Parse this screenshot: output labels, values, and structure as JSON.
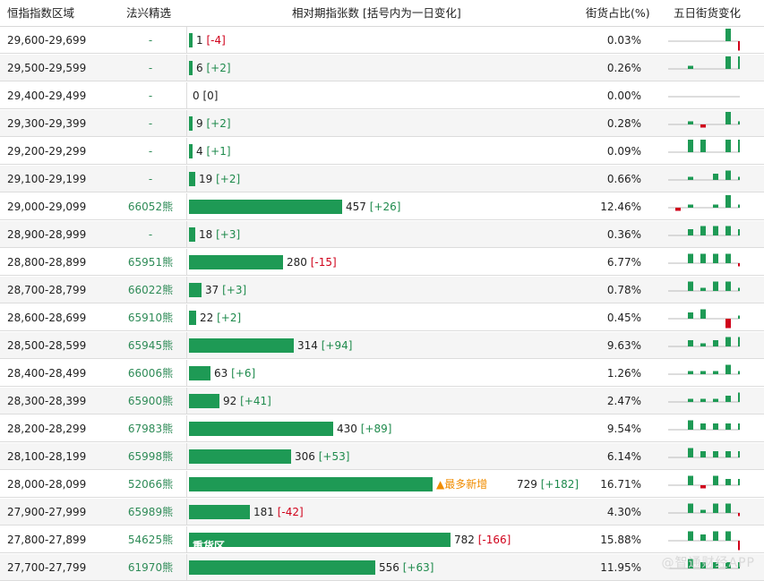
{
  "header": {
    "range": "恒指指数区域",
    "fx": "法兴精选",
    "chart": "相对期指张数 [括号内为一日变化]",
    "pct": "街货占比(%)",
    "five": "五日街货变化"
  },
  "colors": {
    "bar": "#1e9a55",
    "pos": "#1e8a4c",
    "neg": "#d0021b",
    "highlight": "#f08c00"
  },
  "annotations": {
    "most_new": "▲最多新增",
    "heavy": "重货区"
  },
  "watermark": "@智通财经APP",
  "chart_data": {
    "type": "bar",
    "max": 782,
    "rows": [
      {
        "range": "29,600-29,699",
        "fx": "-",
        "value": 1,
        "change": "[-4]",
        "dir": "neg",
        "pct": "0.03%",
        "spark": [
          0,
          0,
          0,
          0,
          4,
          -3
        ]
      },
      {
        "range": "29,500-29,599",
        "fx": "-",
        "value": 6,
        "change": "[+2]",
        "dir": "pos",
        "pct": "0.26%",
        "spark": [
          0,
          1,
          0,
          0,
          4,
          4
        ]
      },
      {
        "range": "29,400-29,499",
        "fx": "-",
        "value": 0,
        "change": "[0]",
        "dir": "none",
        "pct": "0.00%",
        "spark": [
          0,
          0,
          0,
          0,
          0,
          0
        ]
      },
      {
        "range": "29,300-29,399",
        "fx": "-",
        "value": 9,
        "change": "[+2]",
        "dir": "pos",
        "pct": "0.28%",
        "spark": [
          0,
          1,
          -1,
          0,
          4,
          1
        ]
      },
      {
        "range": "29,200-29,299",
        "fx": "-",
        "value": 4,
        "change": "[+1]",
        "dir": "pos",
        "pct": "0.09%",
        "spark": [
          0,
          4,
          4,
          0,
          4,
          4
        ]
      },
      {
        "range": "29,100-29,199",
        "fx": "-",
        "value": 19,
        "change": "[+2]",
        "dir": "pos",
        "pct": "0.66%",
        "spark": [
          0,
          1,
          0,
          2,
          3,
          1
        ]
      },
      {
        "range": "29,000-29,099",
        "fx": "66052熊",
        "value": 457,
        "change": "[+26]",
        "dir": "pos",
        "pct": "12.46%",
        "spark": [
          -1,
          1,
          0,
          1,
          4,
          1
        ]
      },
      {
        "range": "28,900-28,999",
        "fx": "-",
        "value": 18,
        "change": "[+3]",
        "dir": "pos",
        "pct": "0.36%",
        "spark": [
          0,
          2,
          3,
          3,
          3,
          2
        ]
      },
      {
        "range": "28,800-28,899",
        "fx": "65951熊",
        "value": 280,
        "change": "[-15]",
        "dir": "neg",
        "pct": "6.77%",
        "spark": [
          0,
          3,
          3,
          3,
          3,
          -1
        ]
      },
      {
        "range": "28,700-28,799",
        "fx": "66022熊",
        "value": 37,
        "change": "[+3]",
        "dir": "pos",
        "pct": "0.78%",
        "spark": [
          0,
          3,
          1,
          3,
          3,
          1
        ]
      },
      {
        "range": "28,600-28,699",
        "fx": "65910熊",
        "value": 22,
        "change": "[+2]",
        "dir": "pos",
        "pct": "0.45%",
        "spark": [
          0,
          2,
          3,
          0,
          -3,
          1
        ]
      },
      {
        "range": "28,500-28,599",
        "fx": "65945熊",
        "value": 314,
        "change": "[+94]",
        "dir": "pos",
        "pct": "9.63%",
        "spark": [
          0,
          2,
          1,
          2,
          3,
          3
        ]
      },
      {
        "range": "28,400-28,499",
        "fx": "66006熊",
        "value": 63,
        "change": "[+6]",
        "dir": "pos",
        "pct": "1.26%",
        "spark": [
          0,
          1,
          1,
          1,
          3,
          1
        ]
      },
      {
        "range": "28,300-28,399",
        "fx": "65900熊",
        "value": 92,
        "change": "[+41]",
        "dir": "pos",
        "pct": "2.47%",
        "spark": [
          0,
          1,
          1,
          1,
          2,
          3
        ]
      },
      {
        "range": "28,200-28,299",
        "fx": "67983熊",
        "value": 430,
        "change": "[+89]",
        "dir": "pos",
        "pct": "9.54%",
        "spark": [
          0,
          3,
          2,
          2,
          2,
          2
        ]
      },
      {
        "range": "28,100-28,199",
        "fx": "65998熊",
        "value": 306,
        "change": "[+53]",
        "dir": "pos",
        "pct": "6.14%",
        "spark": [
          0,
          3,
          2,
          2,
          2,
          2
        ]
      },
      {
        "range": "28,000-28,099",
        "fx": "52066熊",
        "value": 729,
        "change": "[+182]",
        "dir": "pos",
        "pct": "16.71%",
        "spark": [
          0,
          3,
          -1,
          3,
          2,
          2
        ],
        "note": "most_new"
      },
      {
        "range": "27,900-27,999",
        "fx": "65989熊",
        "value": 181,
        "change": "[-42]",
        "dir": "neg",
        "pct": "4.30%",
        "spark": [
          0,
          3,
          1,
          3,
          3,
          -1
        ]
      },
      {
        "range": "27,800-27,899",
        "fx": "54625熊",
        "value": 782,
        "change": "[-166]",
        "dir": "neg",
        "pct": "15.88%",
        "spark": [
          0,
          3,
          2,
          3,
          3,
          -3
        ],
        "note": "heavy"
      },
      {
        "range": "27,700-27,799",
        "fx": "61970熊",
        "value": 556,
        "change": "[+63]",
        "dir": "pos",
        "pct": "11.95%",
        "spark": [
          0,
          3,
          2,
          2,
          2,
          2
        ]
      }
    ]
  }
}
